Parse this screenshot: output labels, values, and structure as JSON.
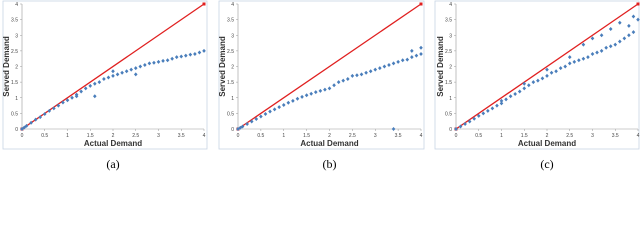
{
  "chart_data": [
    {
      "type": "scatter",
      "x_label": "Actual Demand",
      "y_label": "Served Demand",
      "caption": "(a)",
      "xlim": [
        0,
        4
      ],
      "ylim": [
        0,
        4
      ],
      "xticks": [
        0,
        0.5,
        1,
        1.5,
        2,
        2.5,
        3,
        3.5,
        4
      ],
      "yticks": [
        0,
        0.5,
        1,
        1.5,
        2,
        2.5,
        3,
        3.5,
        4
      ],
      "reference_line": {
        "x": [
          0,
          4
        ],
        "y": [
          0,
          4
        ],
        "color": "#e02020"
      },
      "series": [
        {
          "color": "#4a7ebb",
          "x": [
            0,
            0.05,
            0.1,
            0.2,
            0.3,
            0.4,
            0.5,
            0.6,
            0.7,
            0.8,
            0.9,
            1.0,
            1.1,
            1.2,
            1.3,
            1.4,
            1.5,
            1.6,
            1.7,
            1.8,
            1.9,
            2.0,
            2.1,
            2.2,
            2.3,
            2.4,
            2.5,
            2.6,
            2.7,
            2.8,
            2.9,
            3.0,
            3.1,
            3.2,
            3.3,
            3.4,
            3.5,
            3.6,
            3.7,
            3.8,
            3.9,
            4.0,
            1.6,
            2.0,
            1.2,
            2.5
          ],
          "values": [
            0,
            0.05,
            0.1,
            0.2,
            0.3,
            0.38,
            0.48,
            0.58,
            0.66,
            0.75,
            0.85,
            0.92,
            1.0,
            1.1,
            1.2,
            1.3,
            1.38,
            1.45,
            1.5,
            1.6,
            1.65,
            1.7,
            1.75,
            1.8,
            1.85,
            1.9,
            1.95,
            2.0,
            2.05,
            2.1,
            2.12,
            2.15,
            2.18,
            2.2,
            2.25,
            2.3,
            2.32,
            2.35,
            2.38,
            2.4,
            2.45,
            2.5,
            1.05,
            1.85,
            1.05,
            1.75
          ]
        }
      ]
    },
    {
      "type": "scatter",
      "x_label": "Actual Demand",
      "y_label": "Served Demand",
      "caption": "(b)",
      "xlim": [
        0,
        4
      ],
      "ylim": [
        0,
        4
      ],
      "xticks": [
        0,
        0.5,
        1,
        1.5,
        2,
        2.5,
        3,
        3.5,
        4
      ],
      "yticks": [
        0,
        0.5,
        1,
        1.5,
        2,
        2.5,
        3,
        3.5,
        4
      ],
      "reference_line": {
        "x": [
          0,
          4
        ],
        "y": [
          0,
          4
        ],
        "color": "#e02020"
      },
      "series": [
        {
          "color": "#4a7ebb",
          "x": [
            0,
            0.05,
            0.1,
            0.2,
            0.3,
            0.4,
            0.5,
            0.6,
            0.7,
            0.8,
            0.9,
            1.0,
            1.1,
            1.2,
            1.3,
            1.4,
            1.5,
            1.6,
            1.7,
            1.8,
            1.9,
            2.0,
            2.1,
            2.2,
            2.3,
            2.4,
            2.5,
            2.6,
            2.7,
            2.8,
            2.9,
            3.0,
            3.1,
            3.2,
            3.3,
            3.4,
            3.5,
            3.6,
            3.7,
            3.8,
            3.9,
            4.0,
            3.4,
            3.8,
            4.0
          ],
          "values": [
            0,
            0.04,
            0.08,
            0.16,
            0.24,
            0.32,
            0.4,
            0.48,
            0.56,
            0.63,
            0.7,
            0.77,
            0.84,
            0.9,
            0.97,
            1.03,
            1.08,
            1.13,
            1.18,
            1.22,
            1.26,
            1.3,
            1.4,
            1.5,
            1.55,
            1.6,
            1.7,
            1.72,
            1.75,
            1.8,
            1.85,
            1.9,
            1.95,
            2.0,
            2.05,
            2.1,
            2.15,
            2.2,
            2.22,
            2.3,
            2.35,
            2.4,
            0,
            2.5,
            2.6
          ]
        }
      ]
    },
    {
      "type": "scatter",
      "x_label": "Actual Demand",
      "y_label": "Served Demand",
      "caption": "(c)",
      "xlim": [
        0,
        4
      ],
      "ylim": [
        0,
        4
      ],
      "xticks": [
        0,
        0.5,
        1,
        1.5,
        2,
        2.5,
        3,
        3.5,
        4
      ],
      "yticks": [
        0,
        0.5,
        1,
        1.5,
        2,
        2.5,
        3,
        3.5,
        4
      ],
      "reference_line": {
        "x": [
          0,
          4
        ],
        "y": [
          0,
          4
        ],
        "color": "#e02020"
      },
      "series": [
        {
          "color": "#4a7ebb",
          "x": [
            0,
            0.1,
            0.2,
            0.3,
            0.4,
            0.5,
            0.6,
            0.7,
            0.8,
            0.9,
            1.0,
            1.1,
            1.2,
            1.3,
            1.4,
            1.5,
            1.6,
            1.7,
            1.8,
            1.9,
            2.0,
            2.1,
            2.2,
            2.3,
            2.4,
            2.5,
            2.6,
            2.7,
            2.8,
            2.9,
            3.0,
            3.1,
            3.2,
            3.3,
            3.4,
            3.5,
            3.6,
            3.7,
            3.8,
            3.9,
            4.0,
            1.0,
            1.5,
            2.0,
            2.5,
            2.8,
            3.0,
            3.2,
            3.4,
            3.6,
            3.8,
            3.9
          ],
          "values": [
            0,
            0.08,
            0.16,
            0.24,
            0.33,
            0.42,
            0.5,
            0.58,
            0.66,
            0.75,
            0.82,
            0.95,
            1.05,
            1.12,
            1.2,
            1.3,
            1.4,
            1.5,
            1.55,
            1.62,
            1.7,
            1.8,
            1.85,
            1.95,
            2.0,
            2.1,
            2.15,
            2.2,
            2.25,
            2.3,
            2.4,
            2.45,
            2.5,
            2.6,
            2.65,
            2.7,
            2.8,
            2.9,
            3.0,
            3.1,
            3.5,
            0.9,
            1.45,
            1.9,
            2.3,
            2.7,
            2.9,
            3.0,
            3.2,
            3.4,
            3.3,
            3.6
          ]
        }
      ]
    }
  ]
}
